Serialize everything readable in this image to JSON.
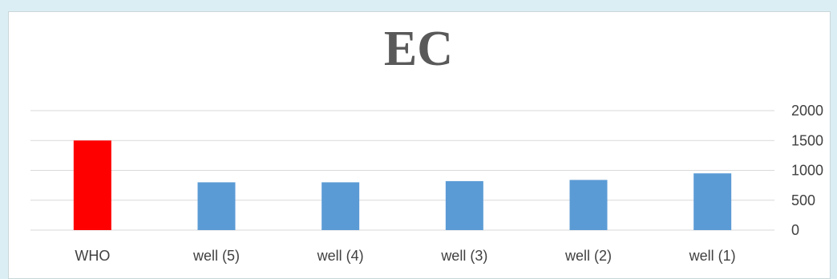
{
  "chart_data": {
    "type": "bar",
    "title": "EC",
    "categories": [
      "WHO",
      "well (5)",
      "well (4)",
      "well (3)",
      "well (2)",
      "well (1)"
    ],
    "values": [
      1500,
      800,
      800,
      820,
      840,
      950
    ],
    "bar_colors": [
      "#ff0000",
      "#5b9bd5",
      "#5b9bd5",
      "#5b9bd5",
      "#5b9bd5",
      "#5b9bd5"
    ],
    "ylim": [
      0,
      2000
    ],
    "yticks": [
      0,
      500,
      1000,
      1500,
      2000
    ],
    "y_axis_position": "right",
    "grid": true,
    "xlabel": "",
    "ylabel": ""
  },
  "colors": {
    "background": "#dbeef3",
    "card": "#ffffff",
    "gridline": "#d9d9d9",
    "text": "#404040",
    "title": "#595959"
  }
}
